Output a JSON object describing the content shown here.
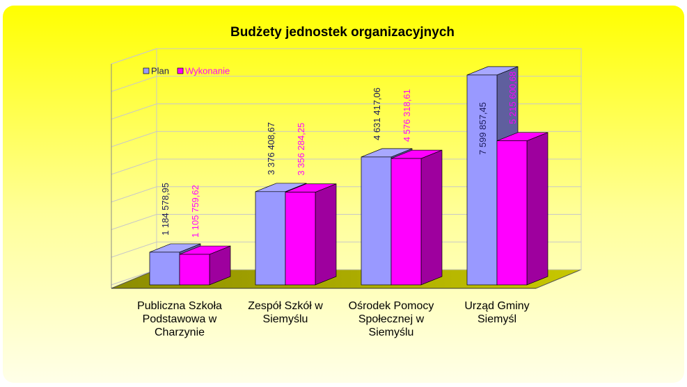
{
  "chart_data": {
    "type": "bar",
    "title": "Budżety jednostek organizacyjnych",
    "categories": [
      "Publiczna Szkoła\nPodstawowa w\nCharzynie",
      "Zespół Szkół w\nSiemyślu",
      "Ośrodek Pomocy\nSpołecznej w\nSiemyślu",
      "Urząd Gminy\nSiemyśl"
    ],
    "series": [
      {
        "name": "Plan",
        "color": "#9999ff",
        "values": [
          1184578.95,
          3376408.67,
          4631417.06,
          7599857.45
        ],
        "value_labels": [
          "1 184 578,95",
          "3 376 408,67",
          "4 631 417,06",
          "7 599 857,45"
        ]
      },
      {
        "name": "Wykonanie",
        "color": "#ff00ff",
        "values": [
          1105759.62,
          3356284.25,
          4576318.61,
          5215600.68
        ],
        "value_labels": [
          "1 105 759,62",
          "3 356 284,25",
          "4 576 318,61",
          "5 215 600,68"
        ]
      }
    ],
    "ylim": [
      0,
      8000000
    ],
    "yticks": [
      0,
      1000000,
      2000000,
      3000000,
      4000000,
      5000000,
      6000000,
      7000000,
      8000000
    ],
    "grid": true,
    "legend": "top-left"
  }
}
